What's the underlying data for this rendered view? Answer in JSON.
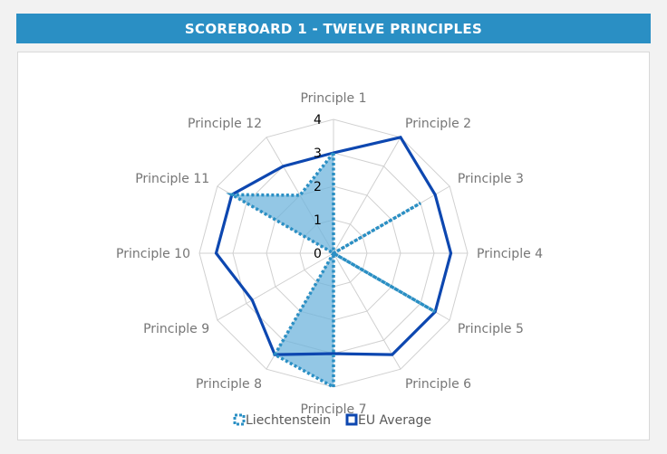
{
  "header": {
    "title": "SCOREBOARD 1 - TWELVE PRINCIPLES"
  },
  "colors": {
    "header_bg": "#2a8fc4",
    "liechtenstein_fill": "#6fb4dc",
    "liechtenstein_line": "#2a8fc4",
    "eu_line": "#0d47b0",
    "grid": "#d0d0d0"
  },
  "chart_data": {
    "type": "radar",
    "title": "",
    "categories": [
      "Principle 1",
      "Principle 2",
      "Principle 3",
      "Principle 4",
      "Principle 5",
      "Principle 6",
      "Principle 7",
      "Principle 8",
      "Principle 9",
      "Principle 10",
      "Principle 11",
      "Principle 12"
    ],
    "rlim": [
      0,
      4
    ],
    "ticks": [
      "0",
      "1",
      "2",
      "3",
      "4"
    ],
    "grid": true,
    "legend_position": "bottom",
    "series": [
      {
        "name": "Liechtenstein",
        "values": [
          3,
          0,
          3,
          0,
          3.5,
          0,
          4,
          3.5,
          0,
          0,
          3.5,
          2
        ]
      },
      {
        "name": "EU Average",
        "values": [
          3,
          4,
          3.5,
          3.5,
          3.5,
          3.5,
          3,
          3.5,
          2.8,
          3.5,
          3.5,
          3
        ]
      }
    ]
  }
}
